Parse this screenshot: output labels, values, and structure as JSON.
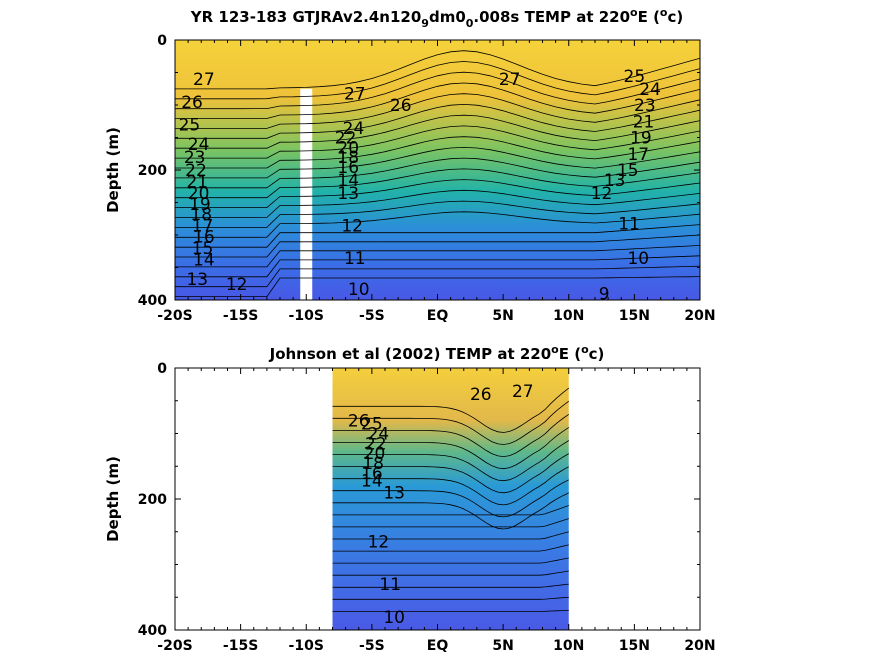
{
  "chart_data": [
    {
      "type": "heatmap",
      "title_main": "YR 123-183 GTJRAv2.4n120",
      "title_sub1": "9",
      "title_mid": "dm0",
      "title_sub2": "0",
      "title_tail": ".008s TEMP at 220",
      "title_sup": "o",
      "title_end": "E (",
      "title_sup2": "o",
      "title_close": "c)",
      "ylabel": "Depth (m)",
      "xlim": [
        -20,
        20
      ],
      "ylim": [
        0,
        400
      ],
      "x_ticks": [
        -20,
        -15,
        -10,
        -5,
        0,
        5,
        10,
        15,
        20
      ],
      "x_tick_labels": [
        "-20S",
        "-15S",
        "-10S",
        "-5S",
        "EQ",
        "5N",
        "10N",
        "15N",
        "20N"
      ],
      "y_ticks": [
        0,
        200,
        400
      ],
      "y_tick_labels": [
        "0",
        "200",
        "400"
      ],
      "data_x_range": [
        -20,
        20
      ],
      "gap_x": -10,
      "contour_labels": [
        {
          "text": "27",
          "x": -17.8,
          "y": 60
        },
        {
          "text": "26",
          "x": -18.7,
          "y": 95
        },
        {
          "text": "25",
          "x": -18.9,
          "y": 130
        },
        {
          "text": "24",
          "x": -18.2,
          "y": 160
        },
        {
          "text": "23",
          "x": -18.5,
          "y": 180
        },
        {
          "text": "22",
          "x": -18.4,
          "y": 200
        },
        {
          "text": "21",
          "x": -18.3,
          "y": 218
        },
        {
          "text": "20",
          "x": -18.2,
          "y": 235
        },
        {
          "text": "19",
          "x": -18.1,
          "y": 252
        },
        {
          "text": "18",
          "x": -18.0,
          "y": 268
        },
        {
          "text": "17",
          "x": -17.9,
          "y": 285
        },
        {
          "text": "16",
          "x": -17.8,
          "y": 302
        },
        {
          "text": "15",
          "x": -17.9,
          "y": 320
        },
        {
          "text": "14",
          "x": -17.8,
          "y": 338
        },
        {
          "text": "13",
          "x": -18.3,
          "y": 368
        },
        {
          "text": "12",
          "x": -15.3,
          "y": 375
        },
        {
          "text": "27",
          "x": -6.3,
          "y": 82
        },
        {
          "text": "26",
          "x": -2.8,
          "y": 100
        },
        {
          "text": "24",
          "x": -6.4,
          "y": 135
        },
        {
          "text": "22",
          "x": -7.0,
          "y": 150
        },
        {
          "text": "20",
          "x": -6.8,
          "y": 165
        },
        {
          "text": "18",
          "x": -6.8,
          "y": 180
        },
        {
          "text": "16",
          "x": -6.8,
          "y": 195
        },
        {
          "text": "14",
          "x": -6.8,
          "y": 215
        },
        {
          "text": "13",
          "x": -6.8,
          "y": 235
        },
        {
          "text": "12",
          "x": -6.5,
          "y": 285
        },
        {
          "text": "11",
          "x": -6.3,
          "y": 335
        },
        {
          "text": "10",
          "x": -6.0,
          "y": 383
        },
        {
          "text": "27",
          "x": 5.5,
          "y": 60
        },
        {
          "text": "25",
          "x": 15.0,
          "y": 55
        },
        {
          "text": "24",
          "x": 16.2,
          "y": 75
        },
        {
          "text": "23",
          "x": 15.8,
          "y": 100
        },
        {
          "text": "21",
          "x": 15.7,
          "y": 125
        },
        {
          "text": "19",
          "x": 15.5,
          "y": 150
        },
        {
          "text": "17",
          "x": 15.3,
          "y": 175
        },
        {
          "text": "15",
          "x": 14.5,
          "y": 200
        },
        {
          "text": "13",
          "x": 13.5,
          "y": 215
        },
        {
          "text": "12",
          "x": 12.5,
          "y": 235
        },
        {
          "text": "11",
          "x": 14.6,
          "y": 282
        },
        {
          "text": "10",
          "x": 15.3,
          "y": 335
        },
        {
          "text": "9",
          "x": 12.7,
          "y": 390
        }
      ]
    },
    {
      "type": "heatmap",
      "title_main": "Johnson et al (2002) TEMP at 220",
      "title_sup": "o",
      "title_end": "E (",
      "title_sup2": "o",
      "title_close": "c)",
      "ylabel": "Depth (m)",
      "xlim": [
        -20,
        20
      ],
      "ylim": [
        0,
        400
      ],
      "x_ticks": [
        -20,
        -15,
        -10,
        -5,
        0,
        5,
        10,
        15,
        20
      ],
      "x_tick_labels": [
        "-20S",
        "-15S",
        "-10S",
        "-5S",
        "EQ",
        "5N",
        "10N",
        "15N",
        "20N"
      ],
      "y_ticks": [
        0,
        200,
        400
      ],
      "y_tick_labels": [
        "0",
        "200",
        "400"
      ],
      "data_x_range": [
        -8,
        10
      ],
      "contour_labels": [
        {
          "text": "26",
          "x": -6.0,
          "y": 80
        },
        {
          "text": "25",
          "x": -5.0,
          "y": 85
        },
        {
          "text": "27",
          "x": 6.5,
          "y": 35
        },
        {
          "text": "26",
          "x": 3.3,
          "y": 40
        },
        {
          "text": "24",
          "x": -4.5,
          "y": 100
        },
        {
          "text": "22",
          "x": -4.7,
          "y": 115
        },
        {
          "text": "20",
          "x": -4.8,
          "y": 130
        },
        {
          "text": "18",
          "x": -4.9,
          "y": 145
        },
        {
          "text": "16",
          "x": -5.0,
          "y": 160
        },
        {
          "text": "14",
          "x": -5.0,
          "y": 172
        },
        {
          "text": "13",
          "x": -3.3,
          "y": 190
        },
        {
          "text": "12",
          "x": -4.5,
          "y": 265
        },
        {
          "text": "11",
          "x": -3.6,
          "y": 330
        },
        {
          "text": "10",
          "x": -3.3,
          "y": 380
        }
      ]
    }
  ]
}
